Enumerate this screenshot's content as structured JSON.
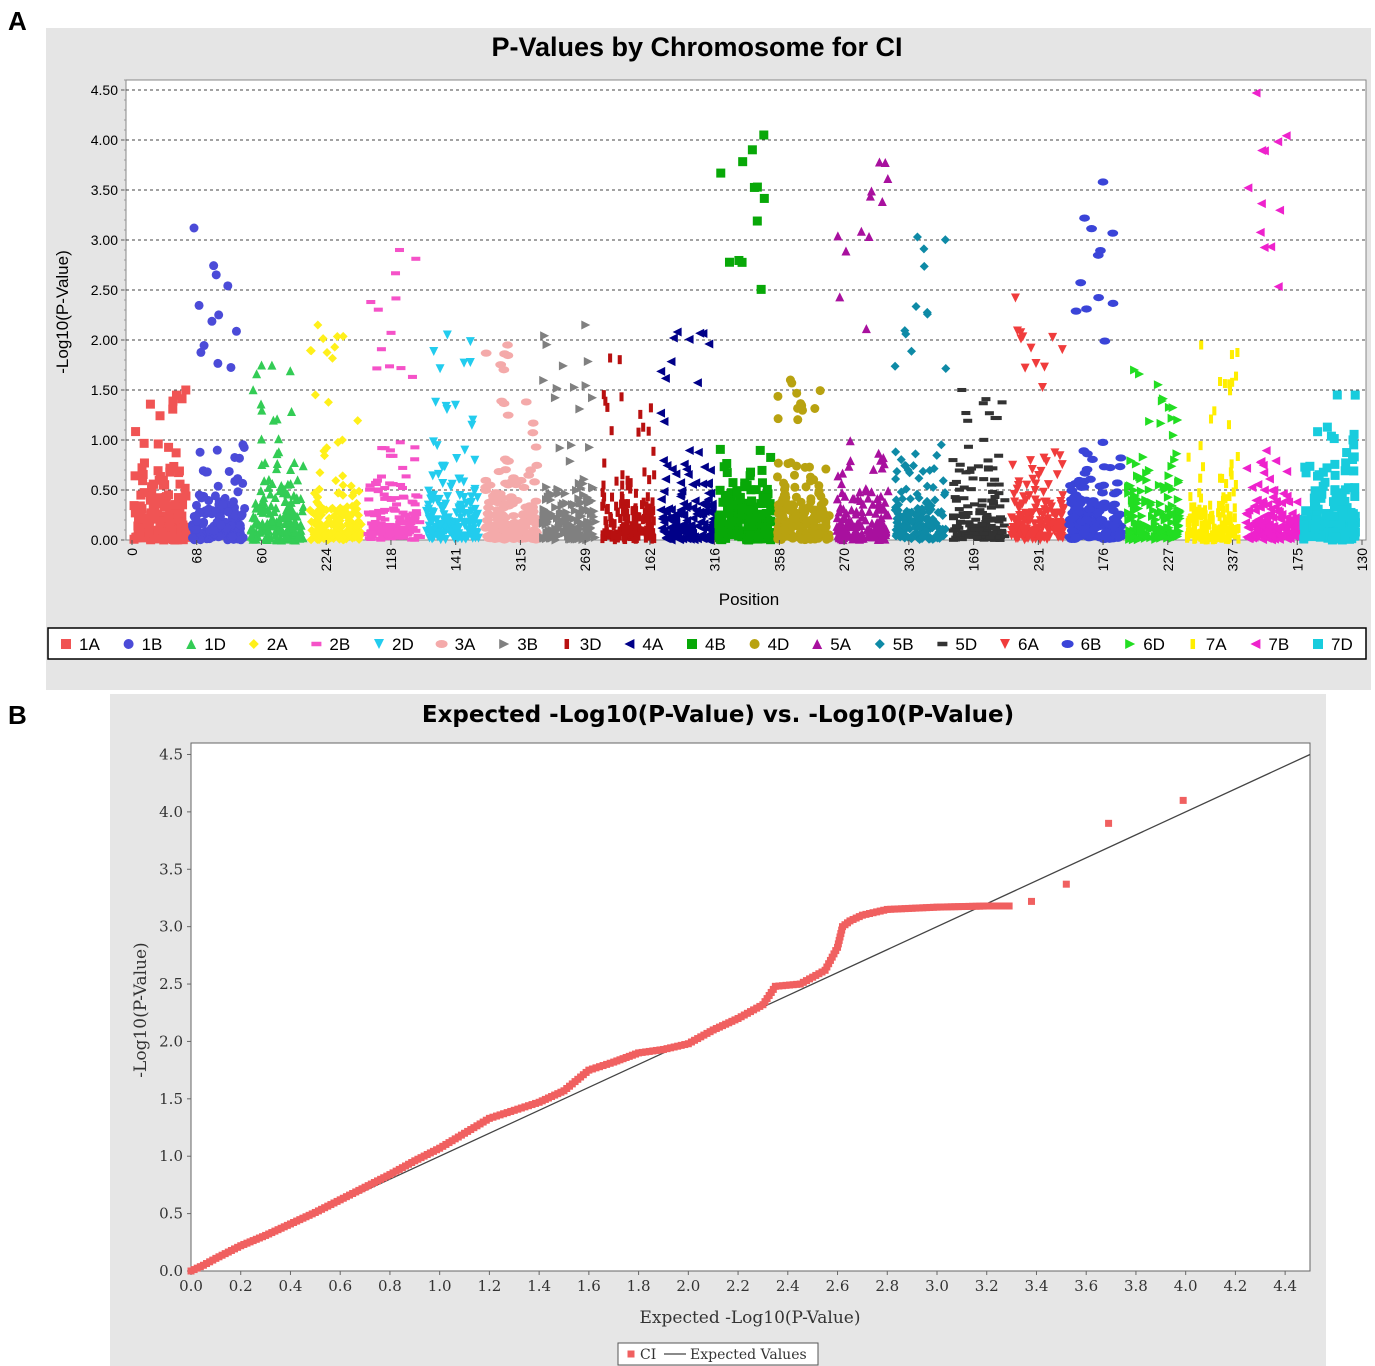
{
  "panel_labels": {
    "a": "A",
    "b": "B"
  },
  "chart_data": [
    {
      "type": "scatter",
      "title": "P-Values by Chromosome for CI",
      "xlabel": "Position",
      "ylabel": "-Log10(P-Value)",
      "ylim": [
        0,
        4.6
      ],
      "yticks": [
        "0.00",
        "0.50",
        "1.00",
        "1.50",
        "2.00",
        "2.50",
        "3.00",
        "3.50",
        "4.00",
        "4.50"
      ],
      "grid": "horizontal dashed",
      "legend_position": "bottom",
      "xticks": [
        "0",
        "68",
        "60",
        "224",
        "118",
        "141",
        "315",
        "269",
        "162",
        "316",
        "358",
        "270",
        "303",
        "169",
        "291",
        "176",
        "227",
        "337",
        "175",
        "130"
      ],
      "series": [
        {
          "name": "1A",
          "color": "#f05454",
          "marker": "square",
          "max": 1.5
        },
        {
          "name": "1B",
          "color": "#4b4bd8",
          "marker": "circle",
          "max": 3.12
        },
        {
          "name": "1D",
          "color": "#33cc55",
          "marker": "triangle-up",
          "max": 1.75
        },
        {
          "name": "2A",
          "color": "#fff01a",
          "marker": "diamond",
          "max": 2.15
        },
        {
          "name": "2B",
          "color": "#f552c8",
          "marker": "dash",
          "max": 2.9
        },
        {
          "name": "2D",
          "color": "#22ccee",
          "marker": "triangle-down",
          "max": 2.05
        },
        {
          "name": "3A",
          "color": "#f4aaaa",
          "marker": "ellipse",
          "max": 1.95
        },
        {
          "name": "3B",
          "color": "#808080",
          "marker": "triangle-right",
          "max": 2.15
        },
        {
          "name": "3D",
          "color": "#b81010",
          "marker": "rect-tall",
          "max": 1.82
        },
        {
          "name": "4A",
          "color": "#000088",
          "marker": "triangle-left",
          "max": 2.08
        },
        {
          "name": "4B",
          "color": "#08a808",
          "marker": "square",
          "max": 4.05
        },
        {
          "name": "4D",
          "color": "#b8a210",
          "marker": "circle",
          "max": 1.6
        },
        {
          "name": "5A",
          "color": "#a8109e",
          "marker": "triangle-up",
          "max": 3.78
        },
        {
          "name": "5B",
          "color": "#0e8aa6",
          "marker": "diamond",
          "max": 3.03
        },
        {
          "name": "5D",
          "color": "#333333",
          "marker": "dash",
          "max": 1.5
        },
        {
          "name": "6A",
          "color": "#f03c3c",
          "marker": "triangle-down",
          "max": 2.42
        },
        {
          "name": "6B",
          "color": "#3a44d8",
          "marker": "ellipse",
          "max": 3.58
        },
        {
          "name": "6D",
          "color": "#22dd22",
          "marker": "triangle-right",
          "max": 1.7
        },
        {
          "name": "7A",
          "color": "#ffee00",
          "marker": "rect-tall",
          "max": 1.95
        },
        {
          "name": "7B",
          "color": "#ee22cc",
          "marker": "triangle-left",
          "max": 4.47
        },
        {
          "name": "7D",
          "color": "#18ccdd",
          "marker": "square",
          "max": 1.45
        }
      ]
    },
    {
      "type": "scatter",
      "title": "Expected -Log10(P-Value) vs. -Log10(P-Value)",
      "xlabel": "Expected -Log10(P-Value)",
      "ylabel": "-Log10(P-Value)",
      "xlim": [
        0,
        4.5
      ],
      "ylim": [
        0,
        4.6
      ],
      "xticks": [
        "0.0",
        "0.2",
        "0.4",
        "0.6",
        "0.8",
        "1.0",
        "1.2",
        "1.4",
        "1.6",
        "1.8",
        "2.0",
        "2.2",
        "2.4",
        "2.6",
        "2.8",
        "3.0",
        "3.2",
        "3.4",
        "3.6",
        "3.8",
        "4.0",
        "4.2",
        "4.4"
      ],
      "yticks": [
        "0.0",
        "0.5",
        "1.0",
        "1.5",
        "2.0",
        "2.5",
        "3.0",
        "3.5",
        "4.0",
        "4.5"
      ],
      "legend_position": "bottom",
      "series": [
        {
          "name": "CI",
          "color": "#f06060",
          "marker": "square",
          "points": [
            [
              0,
              0
            ],
            [
              0.05,
              0.05
            ],
            [
              0.1,
              0.11
            ],
            [
              0.2,
              0.22
            ],
            [
              0.3,
              0.31
            ],
            [
              0.4,
              0.41
            ],
            [
              0.5,
              0.51
            ],
            [
              0.6,
              0.62
            ],
            [
              0.7,
              0.73
            ],
            [
              0.8,
              0.84
            ],
            [
              0.9,
              0.96
            ],
            [
              1.0,
              1.07
            ],
            [
              1.1,
              1.2
            ],
            [
              1.2,
              1.33
            ],
            [
              1.3,
              1.4
            ],
            [
              1.4,
              1.47
            ],
            [
              1.5,
              1.57
            ],
            [
              1.6,
              1.75
            ],
            [
              1.7,
              1.82
            ],
            [
              1.8,
              1.9
            ],
            [
              1.9,
              1.93
            ],
            [
              2.0,
              1.98
            ],
            [
              2.1,
              2.1
            ],
            [
              2.2,
              2.2
            ],
            [
              2.3,
              2.32
            ],
            [
              2.35,
              2.48
            ],
            [
              2.45,
              2.5
            ],
            [
              2.55,
              2.62
            ],
            [
              2.6,
              2.82
            ],
            [
              2.62,
              3.0
            ],
            [
              2.65,
              3.05
            ],
            [
              2.7,
              3.1
            ],
            [
              2.8,
              3.15
            ],
            [
              3.0,
              3.17
            ],
            [
              3.2,
              3.18
            ],
            [
              3.29,
              3.18
            ],
            [
              3.38,
              3.22
            ],
            [
              3.52,
              3.37
            ],
            [
              3.69,
              3.9
            ],
            [
              3.99,
              4.1
            ]
          ]
        },
        {
          "name": "Expected Values",
          "color": "#444444",
          "marker": "line",
          "points": [
            [
              0,
              0
            ],
            [
              4.5,
              4.5
            ]
          ]
        }
      ]
    }
  ]
}
